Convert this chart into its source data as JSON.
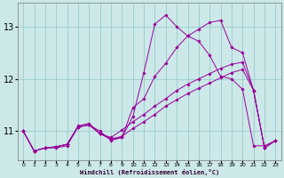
{
  "title": "",
  "xlabel": "Windchill (Refroidissement éolien,°C)",
  "ylabel": "",
  "bg_color": "#cce8e8",
  "grid_color": "#99cccc",
  "line_color": "#990099",
  "xlim": [
    -0.5,
    23.5
  ],
  "ylim": [
    10.45,
    13.45
  ],
  "yticks": [
    11,
    12,
    13
  ],
  "ytick_labels": [
    "11",
    "12",
    "13"
  ],
  "xticks": [
    0,
    1,
    2,
    3,
    4,
    5,
    6,
    7,
    8,
    9,
    10,
    11,
    12,
    13,
    14,
    15,
    16,
    17,
    18,
    19,
    20,
    21,
    22,
    23
  ],
  "curves": [
    {
      "x": [
        0,
        1,
        2,
        3,
        4,
        5,
        6,
        7,
        8,
        9,
        10,
        11,
        12,
        13,
        14,
        15,
        16,
        17,
        18,
        19,
        20,
        21,
        22,
        23
      ],
      "y": [
        11.0,
        10.62,
        10.68,
        10.68,
        10.72,
        11.08,
        11.12,
        11.0,
        10.82,
        10.88,
        11.28,
        12.12,
        13.05,
        13.22,
        13.0,
        12.82,
        12.72,
        12.45,
        12.05,
        12.0,
        11.8,
        10.72,
        10.72,
        10.82
      ]
    },
    {
      "x": [
        0,
        1,
        2,
        3,
        4,
        5,
        6,
        7,
        8,
        9,
        10,
        11,
        12,
        13,
        14,
        15,
        16,
        17,
        18,
        19,
        20,
        21,
        22,
        23
      ],
      "y": [
        11.0,
        10.62,
        10.68,
        10.7,
        10.75,
        11.1,
        11.15,
        10.95,
        10.85,
        10.88,
        11.45,
        11.62,
        12.05,
        12.3,
        12.6,
        12.82,
        12.95,
        13.08,
        13.12,
        12.6,
        12.5,
        11.78,
        10.68,
        10.82
      ]
    },
    {
      "x": [
        0,
        1,
        2,
        3,
        4,
        5,
        6,
        7,
        8,
        9,
        10,
        11,
        12,
        13,
        14,
        15,
        16,
        17,
        18,
        19,
        20,
        21,
        22,
        23
      ],
      "y": [
        11.0,
        10.62,
        10.68,
        10.7,
        10.75,
        11.08,
        11.12,
        10.95,
        10.88,
        11.02,
        11.18,
        11.32,
        11.48,
        11.62,
        11.78,
        11.9,
        12.0,
        12.1,
        12.2,
        12.28,
        12.32,
        11.78,
        10.68,
        10.82
      ]
    },
    {
      "x": [
        0,
        1,
        2,
        3,
        4,
        5,
        6,
        7,
        8,
        9,
        10,
        11,
        12,
        13,
        14,
        15,
        16,
        17,
        18,
        19,
        20,
        21,
        22,
        23
      ],
      "y": [
        11.0,
        10.62,
        10.68,
        10.7,
        10.75,
        11.08,
        11.12,
        10.95,
        10.85,
        10.9,
        11.05,
        11.18,
        11.32,
        11.48,
        11.6,
        11.72,
        11.82,
        11.92,
        12.02,
        12.12,
        12.18,
        11.78,
        10.68,
        10.82
      ]
    }
  ]
}
